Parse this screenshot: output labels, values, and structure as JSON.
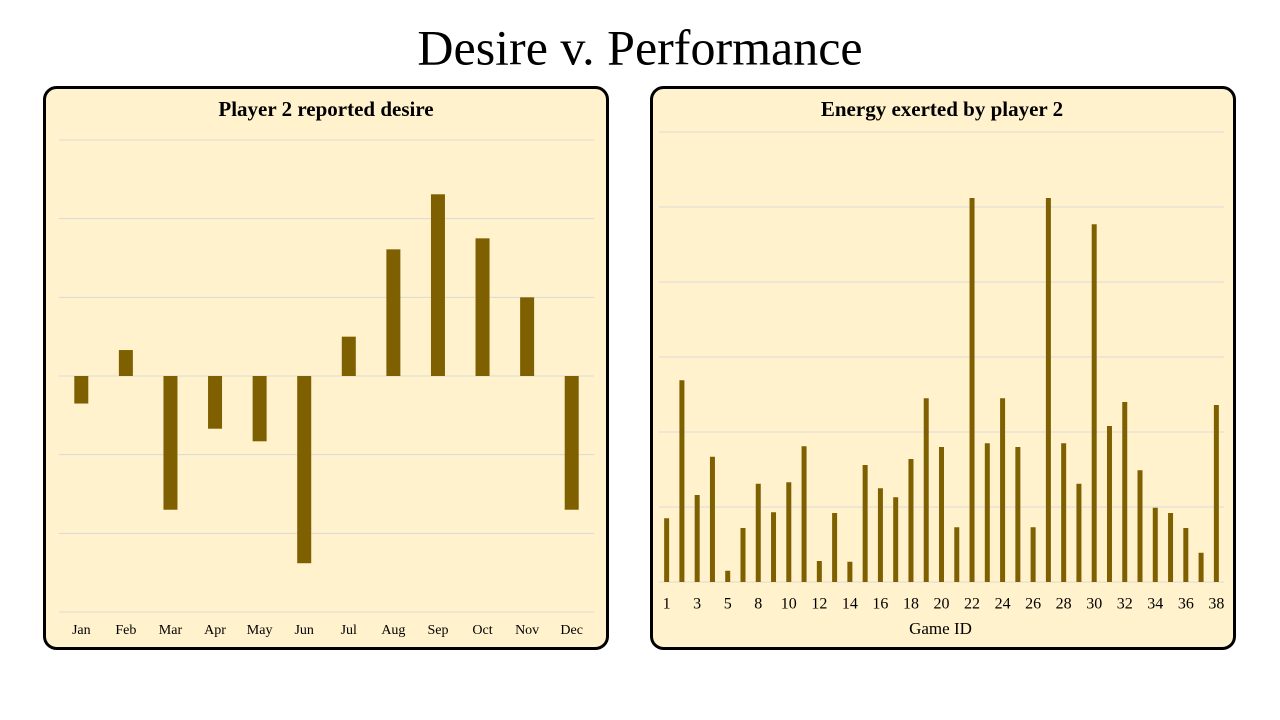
{
  "title": "Desire v. Performance",
  "chart_data": [
    {
      "type": "bar",
      "title": "Player 2 reported desire",
      "categories": [
        "Jan",
        "Feb",
        "Mar",
        "Apr",
        "May",
        "Jun",
        "Jul",
        "Aug",
        "Sep",
        "Oct",
        "Nov",
        "Dec"
      ],
      "values": [
        -0.35,
        0.33,
        -1.7,
        -0.67,
        -0.83,
        -2.38,
        0.5,
        1.61,
        2.31,
        1.75,
        1.0,
        -1.7
      ],
      "color": "#7f6000",
      "ylim": [
        -3,
        3
      ],
      "yticks": [
        -3,
        -2,
        -1,
        0,
        1,
        2,
        3
      ],
      "grid": true
    },
    {
      "type": "bar",
      "title": "Energy exerted by player 2",
      "x_label": "Game ID",
      "categories": [
        "1",
        null,
        "3",
        null,
        "5",
        null,
        "8",
        null,
        "10",
        null,
        "12",
        null,
        "14",
        null,
        "16",
        null,
        "18",
        null,
        "20",
        null,
        "22",
        null,
        "24",
        null,
        "26",
        null,
        "28",
        null,
        "30",
        null,
        "32",
        null,
        "34",
        null,
        "36",
        null,
        "38"
      ],
      "values": [
        0.85,
        2.69,
        1.16,
        1.67,
        0.15,
        0.72,
        1.31,
        0.93,
        1.33,
        1.81,
        0.28,
        0.92,
        0.27,
        1.56,
        1.25,
        1.13,
        1.64,
        2.45,
        1.8,
        0.73,
        5.12,
        1.85,
        2.45,
        1.8,
        0.73,
        5.12,
        1.85,
        1.31,
        4.77,
        2.08,
        2.4,
        1.49,
        0.99,
        0.92,
        0.72,
        0.39,
        2.36
      ],
      "color": "#7f6000",
      "ylim": [
        0,
        6
      ],
      "yticks": [
        0,
        1,
        2,
        3,
        4,
        5,
        6
      ],
      "grid": true
    }
  ]
}
